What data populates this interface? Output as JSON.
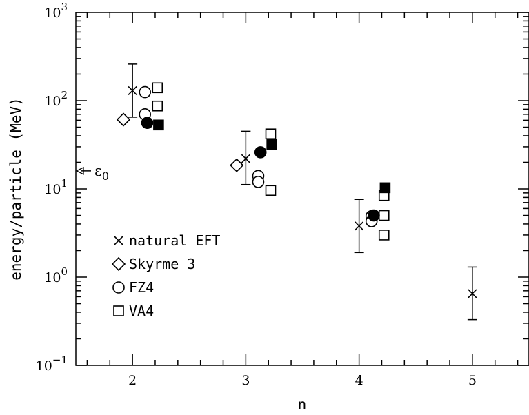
{
  "chart_data": {
    "type": "scatter",
    "title": "",
    "xlabel": "n",
    "ylabel": "energy/particle (MeV)",
    "xlim": [
      1.5,
      5.5
    ],
    "ylim": [
      0.1,
      1000
    ],
    "yscale": "log",
    "grid": false,
    "legend_position": "bottom-left",
    "x_ticks": [
      {
        "value": 2,
        "label": "2"
      },
      {
        "value": 3,
        "label": "3"
      },
      {
        "value": 4,
        "label": "4"
      },
      {
        "value": 5,
        "label": "5"
      }
    ],
    "y_ticks": [
      {
        "value": 0.1,
        "base": "10",
        "exp": "−1"
      },
      {
        "value": 1,
        "base": "10",
        "exp": "0"
      },
      {
        "value": 10,
        "base": "10",
        "exp": "1"
      },
      {
        "value": 100,
        "base": "10",
        "exp": "2"
      },
      {
        "value": 1000,
        "base": "10",
        "exp": "3"
      }
    ],
    "series": [
      {
        "name": "natural EFT",
        "marker": "cross",
        "points": [
          {
            "x": 2.0,
            "y": 130,
            "err_low": 65,
            "err_high": 260
          },
          {
            "x": 3.0,
            "y": 22,
            "err_low": 11.2,
            "err_high": 45
          },
          {
            "x": 4.0,
            "y": 3.8,
            "err_low": 1.9,
            "err_high": 7.6
          },
          {
            "x": 5.0,
            "y": 0.65,
            "err_low": 0.33,
            "err_high": 1.3
          }
        ]
      },
      {
        "name": "Skyrme 3",
        "marker": "diamond-open",
        "points": [
          {
            "x": 1.92,
            "y": 61
          },
          {
            "x": 2.92,
            "y": 18.5
          }
        ]
      },
      {
        "name": "FZ4",
        "marker": "circle-open",
        "points": [
          {
            "x": 2.11,
            "y": 125
          },
          {
            "x": 2.11,
            "y": 70
          },
          {
            "x": 3.11,
            "y": 14
          },
          {
            "x": 3.11,
            "y": 12
          },
          {
            "x": 4.11,
            "y": 4.9
          },
          {
            "x": 4.11,
            "y": 4.3
          }
        ]
      },
      {
        "name": "VA4",
        "marker": "square-open",
        "points": [
          {
            "x": 2.22,
            "y": 140
          },
          {
            "x": 2.22,
            "y": 87
          },
          {
            "x": 3.22,
            "y": 42
          },
          {
            "x": 3.22,
            "y": 9.6
          },
          {
            "x": 4.22,
            "y": 8.4
          },
          {
            "x": 4.22,
            "y": 5.0
          },
          {
            "x": 4.22,
            "y": 3.0
          }
        ]
      },
      {
        "name": "",
        "marker": "circle-filled",
        "points": [
          {
            "x": 2.13,
            "y": 56
          },
          {
            "x": 3.13,
            "y": 26
          },
          {
            "x": 4.13,
            "y": 5.0
          }
        ]
      },
      {
        "name": "",
        "marker": "square-filled",
        "points": [
          {
            "x": 2.23,
            "y": 53
          },
          {
            "x": 3.23,
            "y": 32
          },
          {
            "x": 4.23,
            "y": 10.3
          }
        ]
      }
    ],
    "annotations": [
      {
        "text": "ε",
        "subscript": "0",
        "y": 16,
        "kind": "arrow-left"
      }
    ]
  }
}
